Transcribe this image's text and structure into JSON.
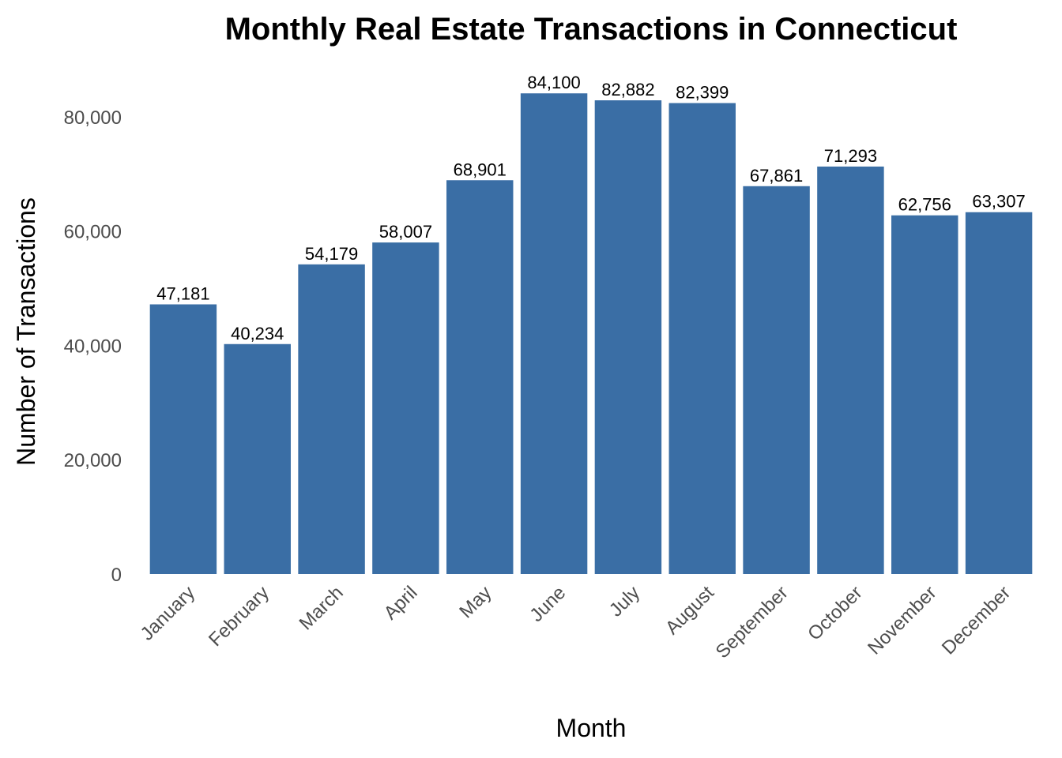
{
  "chart_data": {
    "type": "bar",
    "title": "Monthly Real Estate Transactions in Connecticut",
    "xlabel": "Month",
    "ylabel": "Number of Transactions",
    "categories": [
      "January",
      "February",
      "March",
      "April",
      "May",
      "June",
      "July",
      "August",
      "September",
      "October",
      "November",
      "December"
    ],
    "values": [
      47181,
      40234,
      54179,
      58007,
      68901,
      84100,
      82882,
      82399,
      67861,
      71293,
      62756,
      63307
    ],
    "value_labels": [
      "47,181",
      "40,234",
      "54,179",
      "58,007",
      "68,901",
      "84,100",
      "82,882",
      "82,399",
      "67,861",
      "71,293",
      "62,756",
      "63,307"
    ],
    "yticks": [
      0,
      20000,
      40000,
      60000,
      80000
    ],
    "ytick_labels": [
      "0",
      "20,000",
      "40,000",
      "60,000",
      "80,000"
    ],
    "ylim": [
      0,
      88000
    ],
    "grid": false,
    "legend": "none",
    "bar_color": "#3a6ea5"
  }
}
